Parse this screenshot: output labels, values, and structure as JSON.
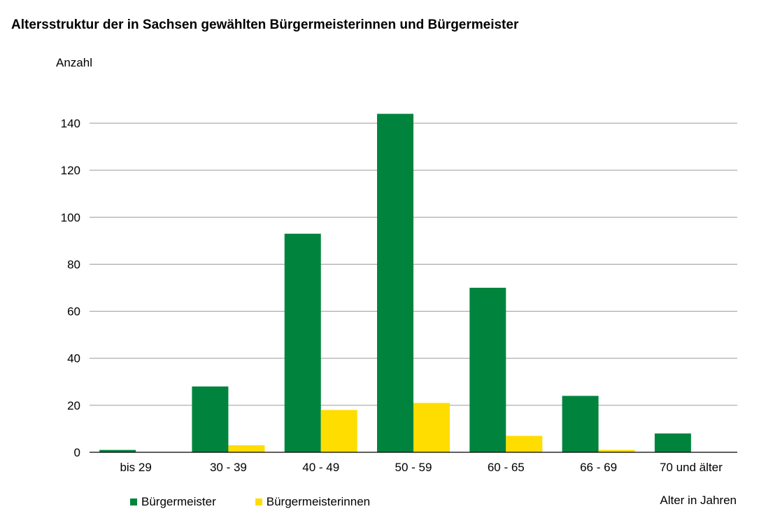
{
  "chart_data": {
    "type": "bar",
    "title": "Altersstruktur der in Sachsen gewählten Bürgermeisterinnen und Bürgermeister",
    "ylabel": "Anzahl",
    "xlabel": "Alter in Jahren",
    "categories": [
      "bis 29",
      "30 - 39",
      "40 - 49",
      "50 - 59",
      "60 - 65",
      "66 - 69",
      "70 und älter"
    ],
    "series": [
      {
        "name": "Bürgermeister",
        "color": "#00843d",
        "values": [
          1,
          28,
          93,
          144,
          70,
          24,
          8
        ]
      },
      {
        "name": "Bürgermeisterinnen",
        "color": "#ffdd00",
        "values": [
          0,
          3,
          18,
          21,
          7,
          1,
          0
        ]
      }
    ],
    "yticks": [
      0,
      20,
      40,
      60,
      80,
      100,
      120,
      140
    ],
    "ylim": [
      0,
      140
    ],
    "grid": true,
    "legend_position": "bottom-left"
  }
}
